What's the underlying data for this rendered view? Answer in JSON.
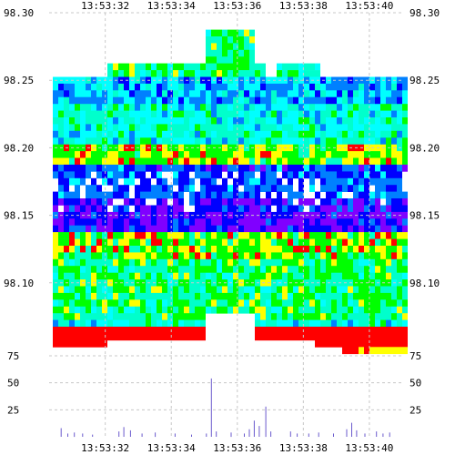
{
  "chart_data": [
    {
      "type": "heatmap",
      "title": "",
      "x_tick_labels": [
        "13:53:32",
        "13:53:34",
        "13:53:36",
        "13:53:38",
        "13:53:40"
      ],
      "y_tick_labels": [
        "98.30",
        "98.25",
        "98.20",
        "98.15",
        "98.10"
      ],
      "x_ticks": [
        {
          "label": "13:53:32",
          "t": 2
        },
        {
          "label": "13:53:34",
          "t": 4
        },
        {
          "label": "13:53:36",
          "t": 6
        },
        {
          "label": "13:53:38",
          "t": 8
        },
        {
          "label": "13:53:40",
          "t": 10
        }
      ],
      "y_ticks": [
        98.3,
        98.25,
        98.2,
        98.15,
        98.1
      ],
      "xlim_seconds_after_13_53_30": [
        0.3,
        11.05
      ],
      "ylim": [
        98.05,
        98.3
      ],
      "row_step": 0.005,
      "colorscale": [
        "#ff0000",
        "#ffff00",
        "#00ff00",
        "#00ffcc",
        "#00ffff",
        "#0080ff",
        "#0000ff",
        "#8000ff"
      ],
      "grid": true,
      "legend": "none"
    },
    {
      "type": "bar",
      "title": "",
      "y_tick_labels": [
        "75",
        "50",
        "25"
      ],
      "y_ticks": [
        75,
        50,
        25
      ],
      "ylim": [
        0,
        80
      ],
      "grid": true,
      "legend": "none",
      "bars": [
        {
          "t": 0.65,
          "value": 8
        },
        {
          "t": 0.85,
          "value": 3
        },
        {
          "t": 1.05,
          "value": 4
        },
        {
          "t": 1.3,
          "value": 3
        },
        {
          "t": 1.6,
          "value": 2
        },
        {
          "t": 2.4,
          "value": 5
        },
        {
          "t": 2.55,
          "value": 9
        },
        {
          "t": 2.75,
          "value": 6
        },
        {
          "t": 3.1,
          "value": 3
        },
        {
          "t": 3.5,
          "value": 4
        },
        {
          "t": 4.1,
          "value": 3
        },
        {
          "t": 4.6,
          "value": 2
        },
        {
          "t": 5.05,
          "value": 3
        },
        {
          "t": 5.2,
          "value": 54
        },
        {
          "t": 5.35,
          "value": 5
        },
        {
          "t": 5.8,
          "value": 4
        },
        {
          "t": 6.2,
          "value": 3
        },
        {
          "t": 6.35,
          "value": 7
        },
        {
          "t": 6.5,
          "value": 15
        },
        {
          "t": 6.65,
          "value": 10
        },
        {
          "t": 6.85,
          "value": 28
        },
        {
          "t": 7.0,
          "value": 5
        },
        {
          "t": 7.6,
          "value": 5
        },
        {
          "t": 7.8,
          "value": 3
        },
        {
          "t": 8.15,
          "value": 3
        },
        {
          "t": 8.45,
          "value": 4
        },
        {
          "t": 8.9,
          "value": 3
        },
        {
          "t": 9.3,
          "value": 7
        },
        {
          "t": 9.45,
          "value": 13
        },
        {
          "t": 9.6,
          "value": 6
        },
        {
          "t": 9.85,
          "value": 3
        },
        {
          "t": 10.2,
          "value": 5
        },
        {
          "t": 10.4,
          "value": 3
        },
        {
          "t": 10.6,
          "value": 4
        }
      ]
    }
  ]
}
